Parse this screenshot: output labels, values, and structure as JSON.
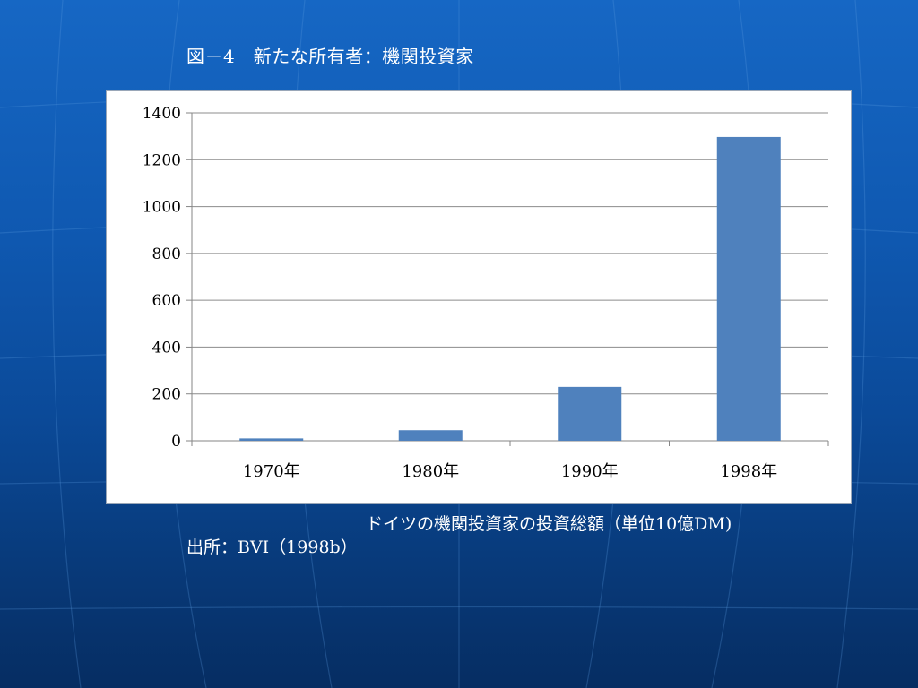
{
  "slide": {
    "title": "図－4　新たな所有者：機関投資家",
    "caption": "ドイツの機関投資家の投資総額（単位10億DM)",
    "source": "出所：BVI（1998b）"
  },
  "colors": {
    "bar": "#4f81bd",
    "grid": "#8c8c8c",
    "axis": "#868686",
    "text": "#000000"
  },
  "chart_data": {
    "type": "bar",
    "categories": [
      "1970年",
      "1980年",
      "1990年",
      "1998年"
    ],
    "values": [
      10,
      45,
      230,
      1297
    ],
    "title": "",
    "xlabel": "",
    "ylabel": "",
    "ylim": [
      0,
      1400
    ],
    "yticks": [
      0,
      200,
      400,
      600,
      800,
      1000,
      1200,
      1400
    ],
    "grid": true,
    "legend": "none"
  }
}
